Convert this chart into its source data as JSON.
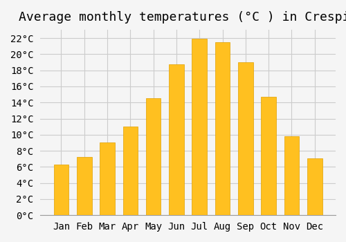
{
  "title": "Average monthly temperatures (°C ) in Crespià",
  "months": [
    "Jan",
    "Feb",
    "Mar",
    "Apr",
    "May",
    "Jun",
    "Jul",
    "Aug",
    "Sep",
    "Oct",
    "Nov",
    "Dec"
  ],
  "values": [
    6.3,
    7.2,
    9.0,
    11.0,
    14.5,
    18.7,
    21.9,
    21.5,
    19.0,
    14.7,
    9.8,
    7.1
  ],
  "bar_color": "#FFC020",
  "bar_edge_color": "#E0A000",
  "background_color": "#F5F5F5",
  "grid_color": "#CCCCCC",
  "ylim": [
    0,
    23
  ],
  "yticks": [
    0,
    2,
    4,
    6,
    8,
    10,
    12,
    14,
    16,
    18,
    20,
    22
  ],
  "title_fontsize": 13,
  "tick_fontsize": 10,
  "bar_width": 0.65
}
